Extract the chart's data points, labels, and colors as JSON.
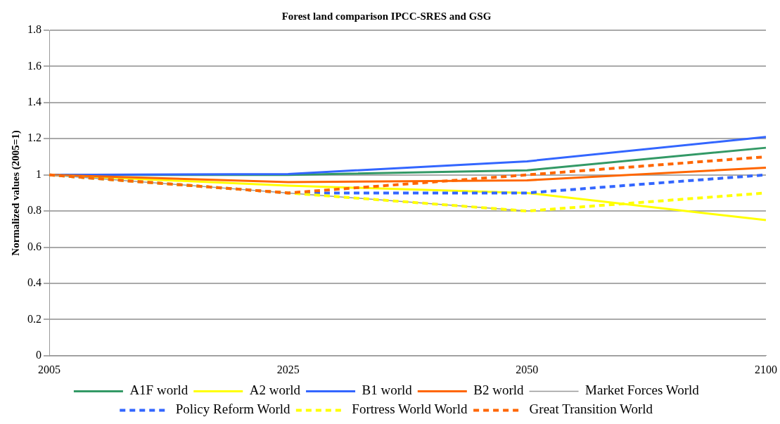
{
  "chart_data": {
    "type": "line",
    "title": "Forest land comparison IPCC-SRES and GSG",
    "ylabel": "Normalized values (2005=1)",
    "categories": [
      "2005",
      "2025",
      "2050",
      "2100"
    ],
    "ylim": [
      0,
      1.8
    ],
    "yticks": [
      0,
      0.2,
      0.4,
      0.6,
      0.8,
      1,
      1.2,
      1.4,
      1.6,
      1.8
    ],
    "grid": "y",
    "legend": "bottom",
    "marker": "none",
    "series": [
      {
        "name": "A1F world",
        "color": "#339966",
        "values": [
          1,
          1.0,
          1.025,
          1.15
        ],
        "line_style": "solid"
      },
      {
        "name": "A2 world",
        "color": "#ffff00",
        "values": [
          1,
          0.94,
          0.9,
          0.75
        ],
        "line_style": "solid"
      },
      {
        "name": "B1 world",
        "color": "#3366ff",
        "values": [
          1,
          1.005,
          1.075,
          1.21
        ],
        "line_style": "solid"
      },
      {
        "name": "B2 world",
        "color": "#ff6600",
        "values": [
          1,
          0.96,
          0.97,
          1.04
        ],
        "line_style": "solid"
      },
      {
        "name": "Market Forces World",
        "color": "#999999",
        "values": [
          1,
          0.9,
          0.8,
          null
        ],
        "line_style": "solid"
      },
      {
        "name": "Policy Reform World",
        "color": "#3366ff",
        "values": [
          1,
          0.9,
          0.9,
          1.0
        ],
        "line_style": "dashed"
      },
      {
        "name": "Fortress World World",
        "color": "#ffff00",
        "values": [
          1,
          0.9,
          0.8,
          0.9
        ],
        "line_style": "dashed"
      },
      {
        "name": "Great Transition World",
        "color": "#ff6600",
        "values": [
          1,
          0.9,
          1.0,
          1.1
        ],
        "line_style": "dashed"
      }
    ]
  }
}
